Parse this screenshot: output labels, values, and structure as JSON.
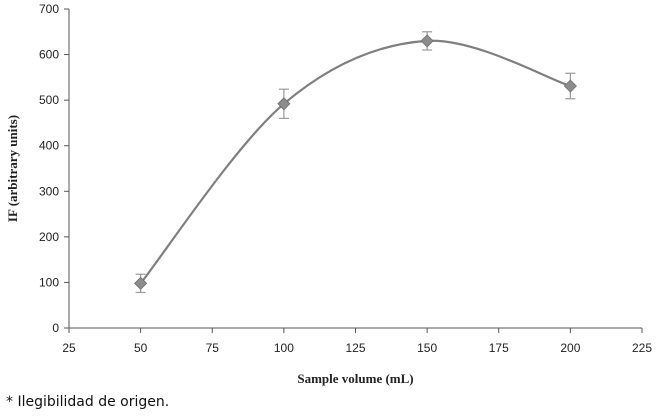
{
  "chart_data": {
    "type": "line",
    "title": "",
    "xlabel": "Sample volume (mL)",
    "ylabel": "IF (arbitrary units)",
    "xlim": [
      25,
      225
    ],
    "ylim": [
      0,
      700
    ],
    "x_ticks": [
      25,
      50,
      75,
      100,
      125,
      150,
      175,
      200,
      225
    ],
    "y_ticks": [
      0,
      100,
      200,
      300,
      400,
      500,
      600,
      700
    ],
    "grid": false,
    "smooth": true,
    "marker": "diamond",
    "series": [
      {
        "points": [
          {
            "x": 50,
            "y": 98,
            "err": 20
          },
          {
            "x": 100,
            "y": 492,
            "err": 32
          },
          {
            "x": 150,
            "y": 630,
            "err": 20
          },
          {
            "x": 200,
            "y": 531,
            "err": 28
          }
        ]
      }
    ],
    "colors": {
      "line": "#7f7f7f",
      "marker": "#8c8c8c",
      "errorbar": "#9a9a9a",
      "axis": "#555555"
    }
  },
  "footnote": "* Ilegibilidad de origen."
}
